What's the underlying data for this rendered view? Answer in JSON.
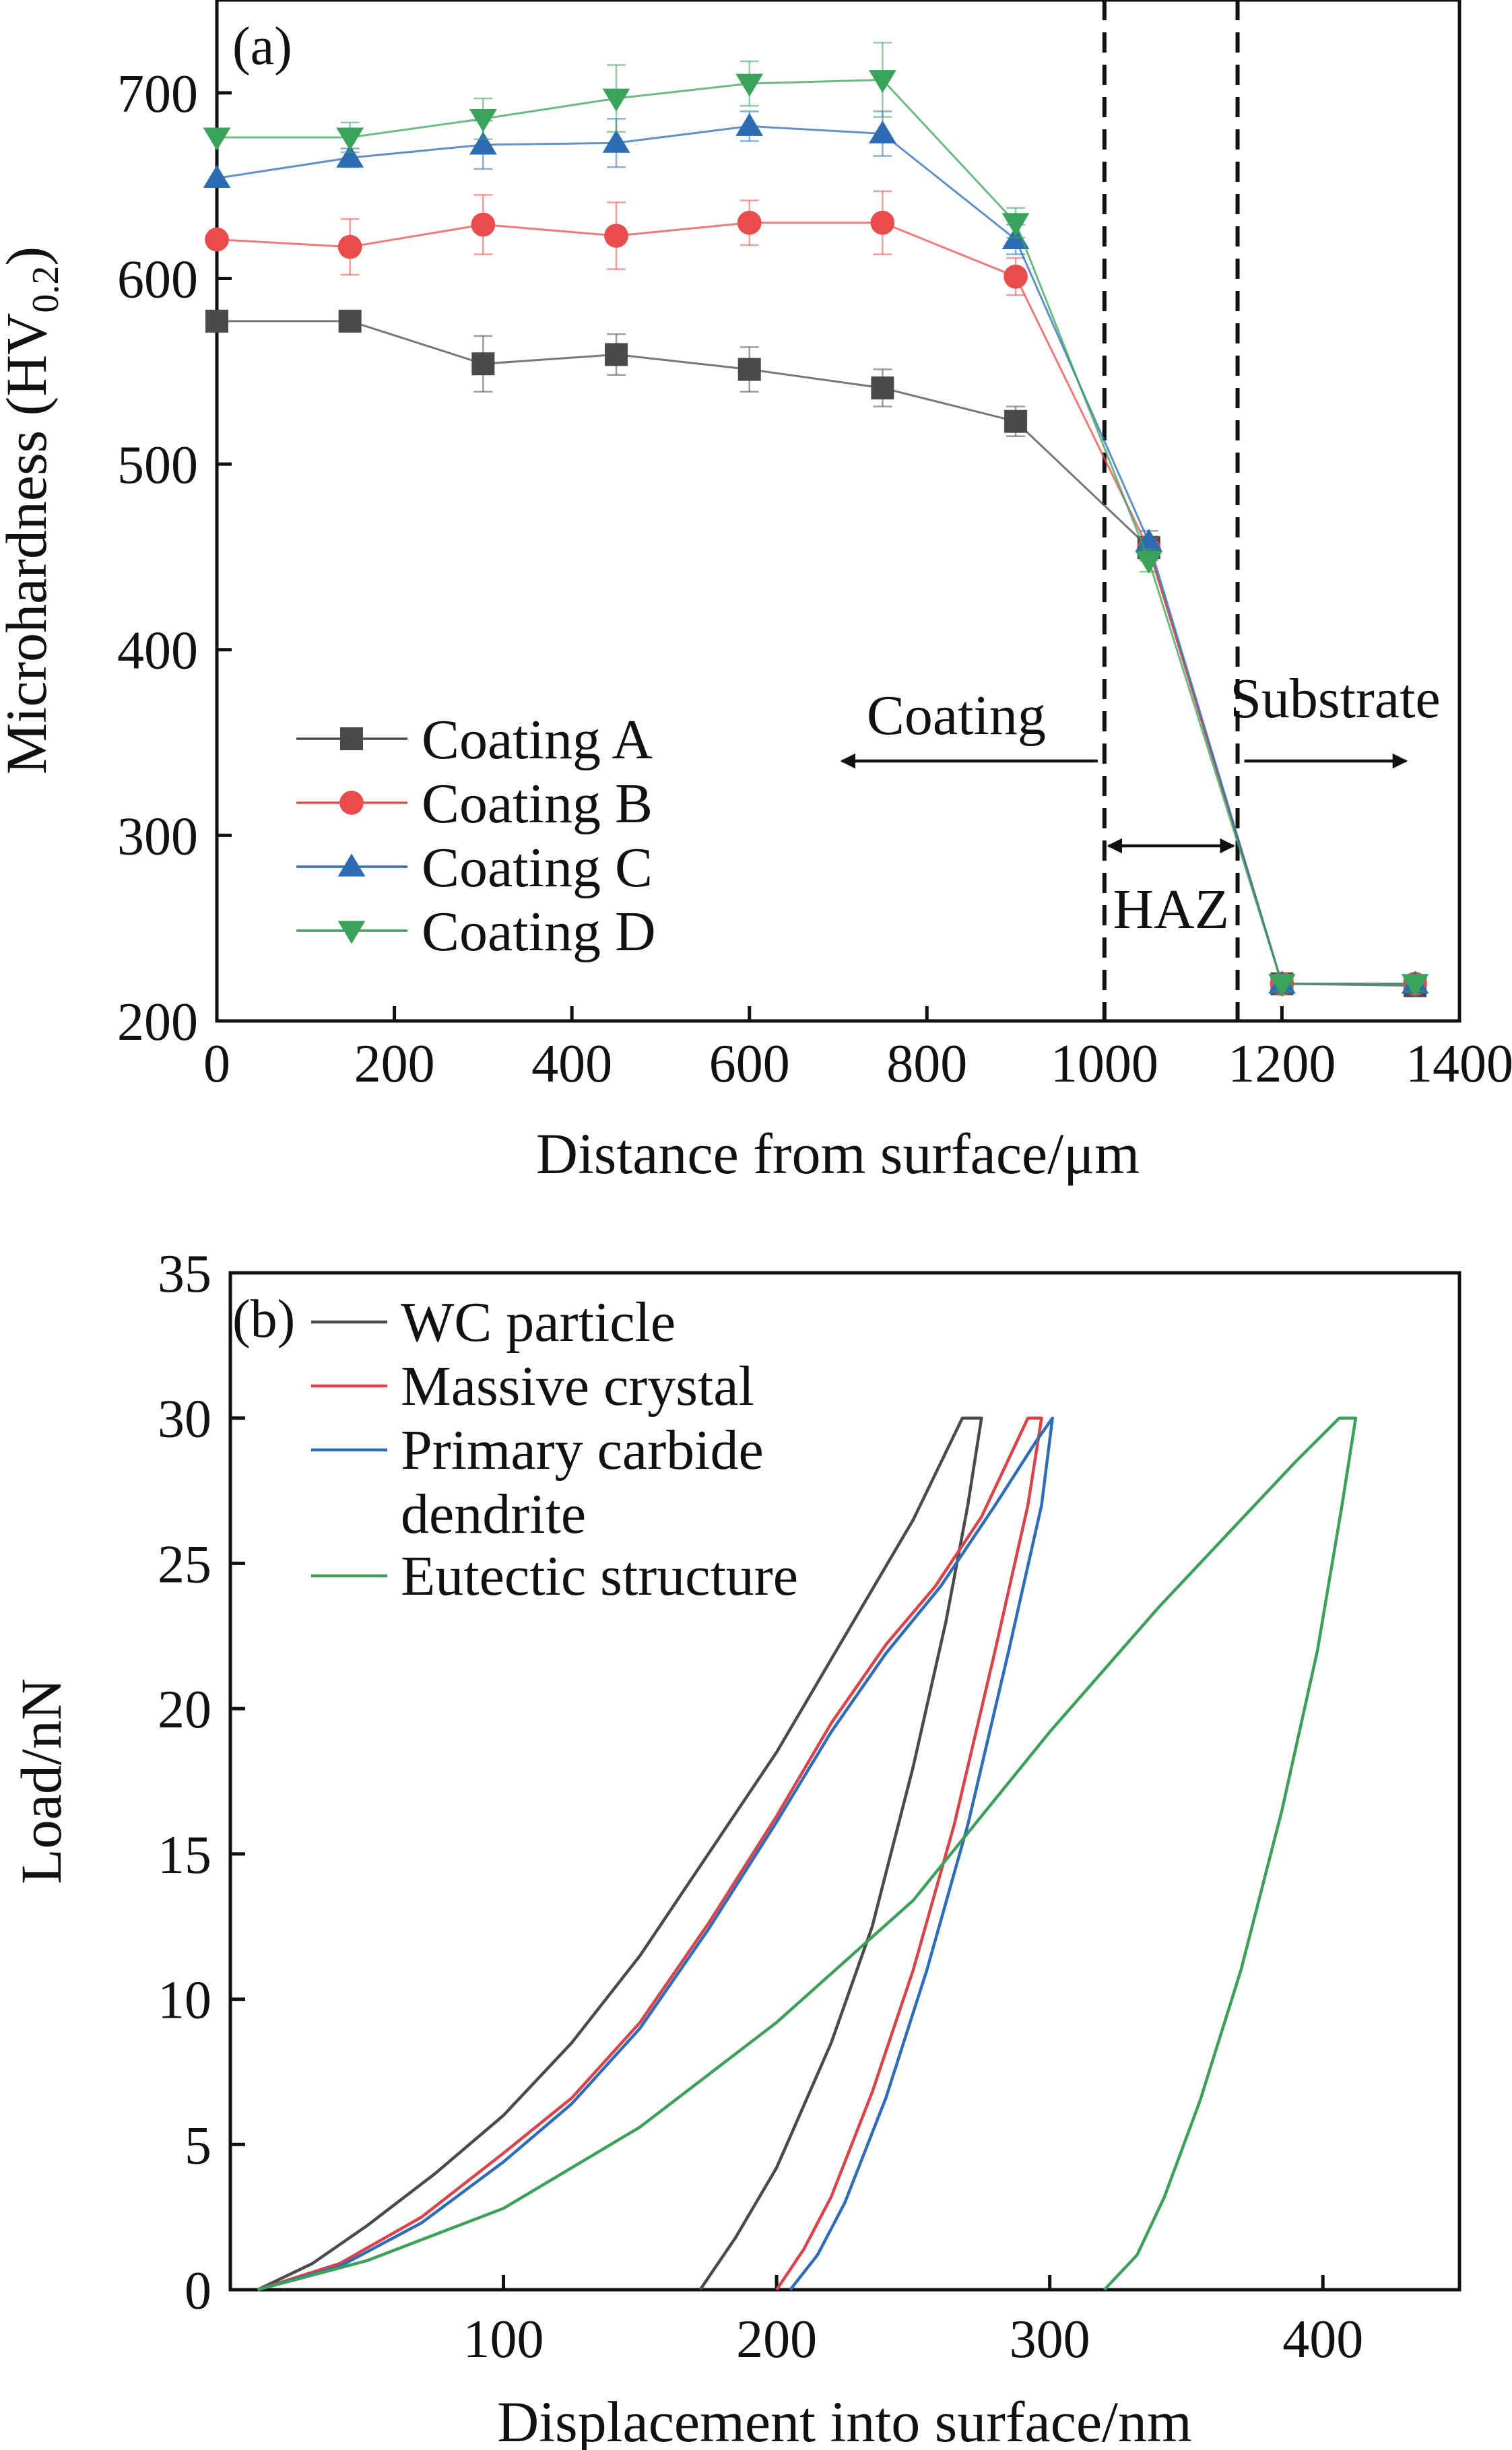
{
  "chart_data": [
    {
      "type": "line",
      "panel_label": "(a)",
      "xlabel": "Distance from surface/μm",
      "ylabel_main": "Microhardness (HV",
      "ylabel_sub": "0.2",
      "ylabel_close": ")",
      "xlim": [
        0,
        1400
      ],
      "ylim": [
        200,
        750
      ],
      "xticks": [
        0,
        200,
        400,
        600,
        800,
        1000,
        1200,
        1400
      ],
      "yticks": [
        200,
        300,
        400,
        500,
        600,
        700
      ],
      "x": [
        0,
        150,
        300,
        450,
        600,
        750,
        900,
        1050,
        1200,
        1350
      ],
      "series": [
        {
          "name": "Coating A",
          "marker": "square",
          "color": "#4a4a4a",
          "values": [
            577,
            577,
            554,
            559,
            551,
            541,
            523,
            455,
            220,
            219
          ],
          "errors": [
            0,
            0,
            15,
            11,
            12,
            10,
            8,
            6,
            4,
            4
          ]
        },
        {
          "name": "Coating B",
          "marker": "circle",
          "color": "#e84c4c",
          "values": [
            621,
            617,
            629,
            623,
            630,
            630,
            601,
            454,
            220,
            220
          ],
          "errors": [
            0,
            15,
            16,
            18,
            12,
            17,
            10,
            6,
            4,
            4
          ]
        },
        {
          "name": "Coating C",
          "marker": "triangle-up",
          "color": "#2b6cb3",
          "values": [
            654,
            665,
            672,
            673,
            682,
            678,
            621,
            458,
            220,
            220
          ],
          "errors": [
            0,
            5,
            13,
            13,
            8,
            12,
            8,
            6,
            4,
            4
          ]
        },
        {
          "name": "Coating D",
          "marker": "triangle-down",
          "color": "#3aa35a",
          "values": [
            676,
            676,
            686,
            697,
            705,
            707,
            630,
            448,
            220,
            220
          ],
          "errors": [
            0,
            8,
            11,
            18,
            12,
            20,
            8,
            6,
            4,
            4
          ]
        }
      ],
      "regions": {
        "coating": "Coating",
        "haz": "HAZ",
        "substrate": "Substrate",
        "boundaries": [
          1000,
          1150
        ]
      },
      "legend_position": "lower-left"
    },
    {
      "type": "line",
      "panel_label": "(b)",
      "xlabel": "Displacement into surface/nm",
      "ylabel": "Load/nN",
      "xlim": [
        0,
        450
      ],
      "ylim": [
        0,
        35
      ],
      "xticks": [
        100,
        200,
        300,
        400
      ],
      "yticks": [
        0,
        5,
        10,
        15,
        20,
        25,
        30,
        35
      ],
      "series": [
        {
          "name": "WC particle",
          "color": "#4a4a4a",
          "x": [
            10,
            30,
            50,
            75,
            100,
            125,
            150,
            175,
            200,
            225,
            250,
            268,
            275,
            270,
            262,
            250,
            235,
            220,
            200,
            185,
            172
          ],
          "y": [
            0,
            0.9,
            2.2,
            4.0,
            6.0,
            8.5,
            11.5,
            15.0,
            18.5,
            22.5,
            26.5,
            30.0,
            30.0,
            27.0,
            23.0,
            18.0,
            12.5,
            8.5,
            4.2,
            1.8,
            0
          ]
        },
        {
          "name": "Massive crystal",
          "color": "#d9444a",
          "x": [
            10,
            40,
            70,
            100,
            125,
            150,
            175,
            200,
            220,
            240,
            258,
            275,
            292,
            297,
            292,
            280,
            265,
            250,
            235,
            220,
            210,
            200
          ],
          "y": [
            0,
            0.9,
            2.5,
            4.7,
            6.6,
            9.2,
            12.6,
            16.3,
            19.5,
            22.2,
            24.2,
            26.6,
            30.0,
            30.0,
            27.0,
            22.0,
            16.0,
            11.0,
            6.8,
            3.2,
            1.4,
            0
          ]
        },
        {
          "name": "Primary carbide dendrite",
          "color": "#2f6db8",
          "x": [
            10,
            40,
            70,
            100,
            125,
            150,
            175,
            200,
            220,
            240,
            260,
            280,
            295,
            301,
            297,
            285,
            270,
            255,
            240,
            225,
            215,
            205
          ],
          "y": [
            0,
            0.8,
            2.3,
            4.4,
            6.4,
            9.0,
            12.4,
            16.1,
            19.2,
            21.9,
            24.2,
            27.0,
            29.2,
            30.0,
            27.0,
            22.0,
            16.0,
            11.0,
            6.6,
            3.0,
            1.2,
            0
          ]
        },
        {
          "name": "Eutectic structure",
          "color": "#3da05a",
          "x": [
            10,
            50,
            100,
            150,
            200,
            250,
            300,
            340,
            370,
            390,
            406,
            412,
            407,
            398,
            385,
            370,
            355,
            342,
            332,
            320
          ],
          "y": [
            0,
            1.0,
            2.8,
            5.6,
            9.2,
            13.4,
            19.2,
            23.5,
            26.5,
            28.5,
            30.0,
            30.0,
            27.0,
            22.0,
            16.5,
            11.0,
            6.5,
            3.2,
            1.2,
            0
          ]
        }
      ],
      "legend_position": "top-left"
    }
  ]
}
